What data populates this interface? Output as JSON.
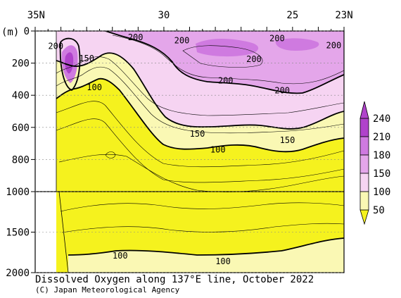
{
  "chart_data": {
    "type": "heatmap",
    "title": "Dissolved Oxygen along 137°E line, October 2022",
    "credit": "(C) Japan Meteorological Agency",
    "x_axis": {
      "label": "",
      "range": [
        35,
        23
      ],
      "ticks": [
        "35N",
        "30",
        "25",
        "23N"
      ],
      "tick_values": [
        35,
        30,
        25,
        23
      ]
    },
    "y_axis": {
      "unit_label": "(m)",
      "range": [
        0,
        2000
      ],
      "upper_ticks": [
        "0",
        "200",
        "400",
        "600",
        "800",
        "1000"
      ],
      "upper_tick_values": [
        0,
        200,
        400,
        600,
        800,
        1000
      ],
      "lower_ticks": [
        "1500",
        "2000"
      ],
      "lower_tick_values": [
        1500,
        2000
      ],
      "scale_break_at": 1000
    },
    "colorbar": {
      "levels": [
        "50",
        "100",
        "150",
        "180",
        "210",
        "240"
      ],
      "colors": [
        "#f5f21e",
        "#faf8b4",
        "#f6d4f2",
        "#e4a6ea",
        "#cf7ae0",
        "#b043cb"
      ]
    },
    "contour_labels": [
      {
        "text": "200",
        "lat": 31.1,
        "depth": 40
      },
      {
        "text": "200",
        "lat": 34.2,
        "depth": 95
      },
      {
        "text": "150",
        "lat": 33.0,
        "depth": 170
      },
      {
        "text": "100",
        "lat": 32.7,
        "depth": 350
      },
      {
        "text": "200",
        "lat": 29.3,
        "depth": 60
      },
      {
        "text": "200",
        "lat": 25.6,
        "depth": 45
      },
      {
        "text": "200",
        "lat": 23.4,
        "depth": 90
      },
      {
        "text": "200",
        "lat": 26.5,
        "depth": 175
      },
      {
        "text": "200",
        "lat": 27.6,
        "depth": 310
      },
      {
        "text": "200",
        "lat": 25.4,
        "depth": 370
      },
      {
        "text": "150",
        "lat": 28.7,
        "depth": 640
      },
      {
        "text": "150",
        "lat": 25.2,
        "depth": 680
      },
      {
        "text": "100",
        "lat": 27.9,
        "depth": 740
      },
      {
        "text": "100",
        "lat": 31.7,
        "depth": 1790
      },
      {
        "text": "100",
        "lat": 27.7,
        "depth": 1860
      }
    ]
  }
}
